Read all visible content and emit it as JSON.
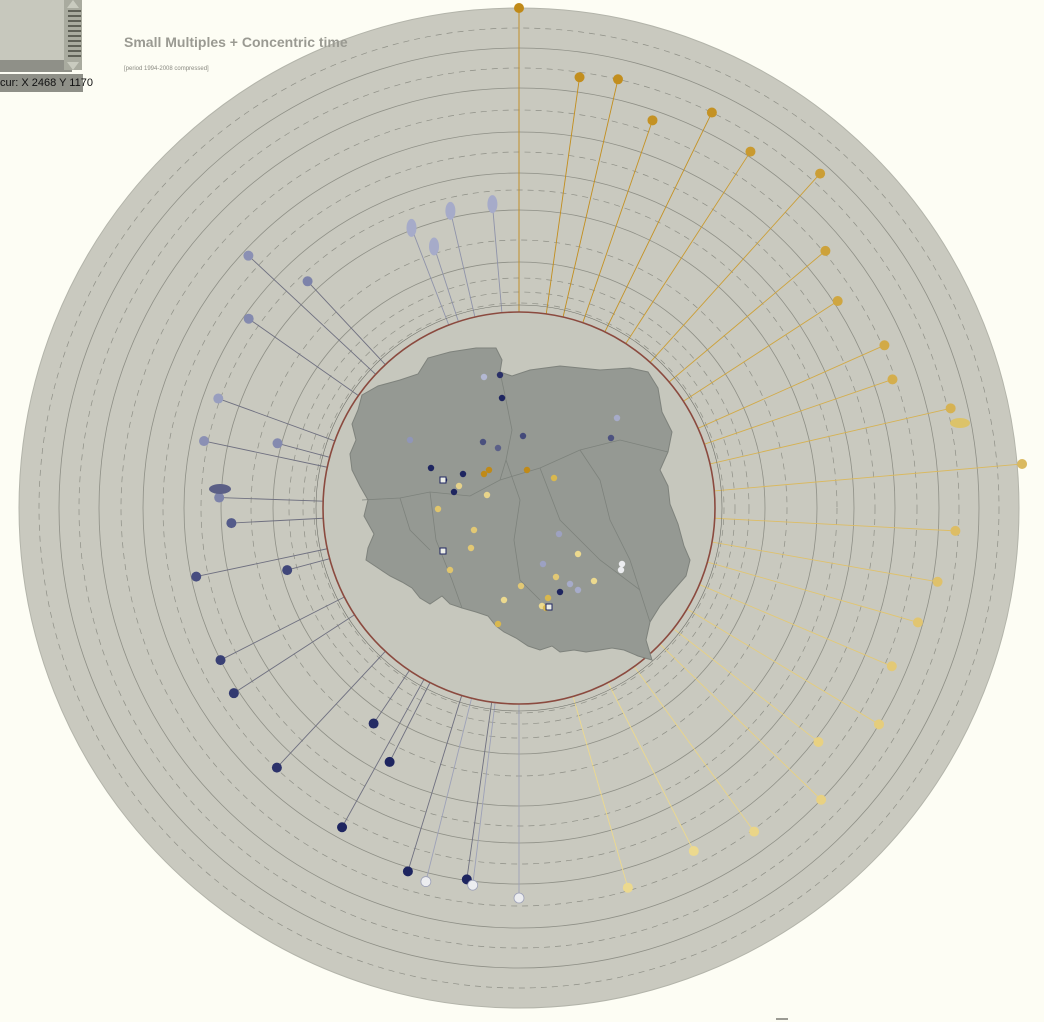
{
  "header": {
    "title": "Small Multiples + Concentric time",
    "subtitle": "[period 1994-2008 compressed]"
  },
  "controls": {
    "cursor_readout": "cur: X 2468 Y 1170",
    "zoom_slider": "vertical-slider"
  },
  "colors": {
    "background": "#fdfdf4",
    "disc": "#c9c9bf",
    "map_land": "#959993",
    "inner_ring": "#8b4a3f",
    "ring_line": "#8e8f86",
    "amber_dark": "#c08a18",
    "amber_light": "#ecd98e",
    "navy_dark": "#1e2560",
    "lavender": "#a6abc9",
    "white_dot": "#ecedf0"
  },
  "icons": {
    "slider_arrows": [
      "arrow-up-icon",
      "arrow-down-icon"
    ]
  }
}
